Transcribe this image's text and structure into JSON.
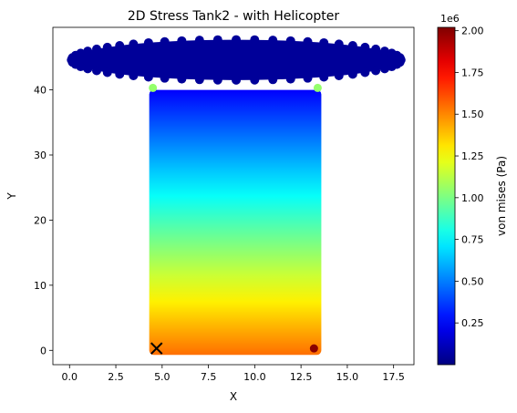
{
  "chart_data": {
    "type": "scatter",
    "title": "2D Stress Tank2 - with Helicopter",
    "xlabel": "X",
    "ylabel": "Y",
    "xlim": [
      -0.9,
      18.6
    ],
    "ylim": [
      -2.2,
      49.6
    ],
    "xticks": [
      0,
      2.5,
      5,
      7.5,
      10,
      12.5,
      15,
      17.5
    ],
    "xtick_labels": [
      "0.0",
      "2.5",
      "5.0",
      "7.5",
      "10.0",
      "12.5",
      "15.0",
      "17.5"
    ],
    "yticks": [
      0,
      10,
      20,
      30,
      40
    ],
    "ytick_labels": [
      "0",
      "10",
      "20",
      "30",
      "40"
    ],
    "grid": false,
    "colormap": "jet",
    "colorbar": {
      "label": "von mises (Pa)",
      "exponent_label": "1e6",
      "range": [
        0.0,
        2.02
      ],
      "ticks": [
        0.25,
        0.5,
        0.75,
        1.0,
        1.25,
        1.5,
        1.75,
        2.0
      ],
      "tick_labels": [
        "0.25",
        "0.50",
        "0.75",
        "1.00",
        "1.25",
        "1.50",
        "1.75",
        "2.00"
      ]
    },
    "regions": [
      {
        "shape": "rectangle",
        "x": [
          4.5,
          13.4
        ],
        "y": [
          0,
          40
        ],
        "stress_at_top": 0.25,
        "stress_at_bottom": 1.55,
        "unit": "MPa"
      },
      {
        "shape": "ellipse",
        "x_center": 9.0,
        "y_center": 44.6,
        "x_radius": 8.9,
        "y_radius": 3.1,
        "stress": 0.05,
        "unit": "MPa"
      }
    ],
    "highlight_points": [
      {
        "x": 4.5,
        "y": 40.3,
        "stress": 1.05
      },
      {
        "x": 13.4,
        "y": 40.3,
        "stress": 1.05
      },
      {
        "x": 13.2,
        "y": 0.3,
        "stress": 2.0
      }
    ],
    "marker": {
      "type": "x",
      "x": 4.7,
      "y": 0.3,
      "color": "#000000"
    }
  }
}
